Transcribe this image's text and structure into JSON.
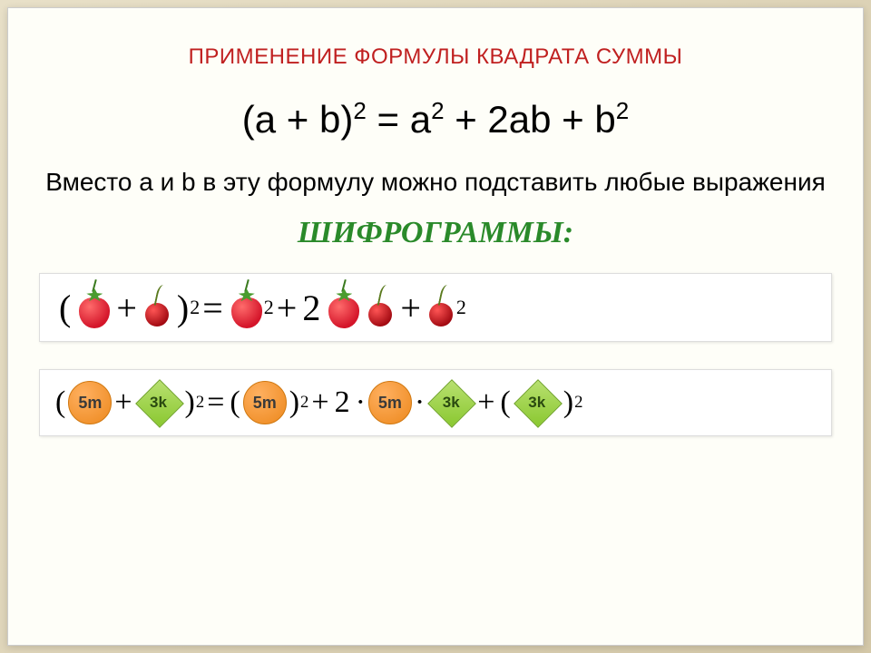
{
  "title": "ПРИМЕНЕНИЕ ФОРМУЛЫ КВАДРАТА СУММЫ",
  "formula": {
    "lhs_open": "(a + b)",
    "lhs_exp": "2",
    "eq": " = ",
    "t1": "a",
    "t1_exp": "2",
    "plus1": " + ",
    "t2": "2ab",
    "plus2": " + ",
    "t3": "b",
    "t3_exp": "2"
  },
  "subtext": "Вместо  а  и  b   в  эту формулу можно подставить  любые выражения",
  "subtitle": "ШИФРОГРАММЫ:",
  "cipher1": {
    "open": "(",
    "plus": " + ",
    "close": " )",
    "exp2": "2",
    "eq": " = ",
    "two": "2",
    "a_icon": "strawberry-icon",
    "b_icon": "cherry-icon"
  },
  "cipher2": {
    "open": "(",
    "plus": " + ",
    "close": " )",
    "exp2": "2",
    "eq": " = ",
    "lp": "( ",
    "rp": " )",
    "plus_op": "+",
    "dot": "·",
    "two": "2",
    "a_label": "5m",
    "b_label": "3k"
  },
  "colors": {
    "title_color": "#c02020",
    "subtitle_color": "#2a8a2a",
    "background": "#fefef8",
    "frame_bg_start": "#e8e0c8",
    "frame_bg_end": "#d4c8a8",
    "strawberry_fill": "#d4152a",
    "cherry_fill": "#a00810",
    "circle_fill": "#f0902a",
    "diamond_fill": "#8ac830"
  },
  "typography": {
    "title_fontsize": 24,
    "formula_fontsize": 42,
    "subtext_fontsize": 28,
    "subtitle_fontsize": 34,
    "cipher_fontsize": 40
  }
}
